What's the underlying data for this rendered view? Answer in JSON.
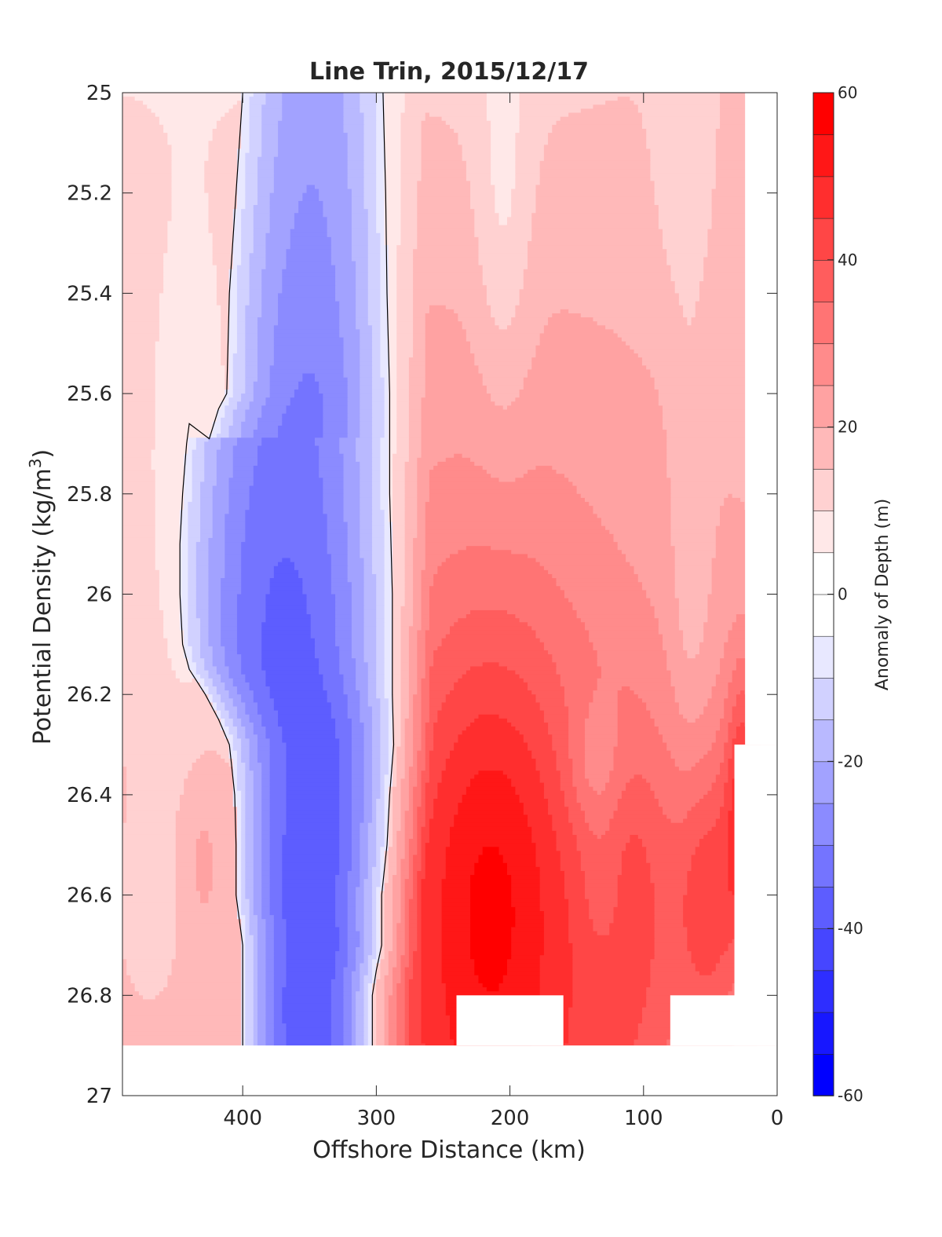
{
  "chart_data": {
    "type": "heatmap",
    "subtype": "filled-contour",
    "title": "Line Trin, 2015/12/17",
    "xlabel": "Offshore Distance (km)",
    "ylabel_main": "Potential Density (kg/m",
    "ylabel_sup": "3",
    "ylabel_close": ")",
    "colorbar_label": "Anomaly of Depth (m)",
    "xlim": [
      490,
      0
    ],
    "x_reversed": true,
    "ylim": [
      25,
      27
    ],
    "y_reversed": true,
    "x_ticks": [
      400,
      300,
      200,
      100,
      0
    ],
    "x_tick_labels": [
      "400",
      "300",
      "200",
      "100",
      "0"
    ],
    "y_ticks": [
      25,
      25.2,
      25.4,
      25.6,
      25.8,
      26,
      26.2,
      26.4,
      26.6,
      26.8,
      27
    ],
    "y_tick_labels": [
      "25",
      "25.2",
      "25.4",
      "25.6",
      "25.8",
      "26",
      "26.2",
      "26.4",
      "26.6",
      "26.8",
      "27"
    ],
    "colorbar_range": [
      -60,
      60
    ],
    "colorbar_step": 5,
    "colorbar_ticks": [
      60,
      40,
      20,
      0,
      -20,
      -40,
      -60
    ],
    "colorbar_tick_labels": [
      "60",
      "40",
      "20",
      "0",
      "-20",
      "-40",
      "-60"
    ],
    "colors": {
      "positive": "#ff0000",
      "negative": "#0000ff",
      "zero": "#ffffff",
      "contour": "#000000"
    },
    "x": [
      485,
      470,
      455,
      440,
      425,
      410,
      400,
      390,
      375,
      360,
      345,
      330,
      315,
      300,
      290,
      280,
      265,
      250,
      235,
      220,
      205,
      190,
      175,
      160,
      145,
      130,
      115,
      100,
      85,
      70,
      55,
      40,
      25
    ],
    "y": [
      25.0,
      25.1,
      25.2,
      25.3,
      25.4,
      25.5,
      25.6,
      25.7,
      25.8,
      25.9,
      26.0,
      26.1,
      26.2,
      26.3,
      26.4,
      26.5,
      26.6,
      26.7,
      26.8,
      26.9
    ],
    "zero_contour_west": {
      "x": [
        400,
        405,
        410,
        412,
        418,
        425,
        440,
        442,
        445,
        447,
        447,
        445,
        440,
        428,
        418,
        410,
        406,
        405,
        405,
        400,
        400
      ],
      "y": [
        25.0,
        25.2,
        25.4,
        25.6,
        25.63,
        25.69,
        25.66,
        25.7,
        25.8,
        25.9,
        26.0,
        26.1,
        26.15,
        26.2,
        26.25,
        26.3,
        26.4,
        26.5,
        26.6,
        26.7,
        26.9
      ]
    },
    "zero_contour_east": {
      "x": [
        295,
        293,
        292,
        290,
        290,
        288,
        288,
        287,
        290,
        292,
        296,
        296,
        300,
        303,
        303
      ],
      "y": [
        25.0,
        25.2,
        25.4,
        25.6,
        25.8,
        26.0,
        26.2,
        26.3,
        26.4,
        26.5,
        26.6,
        26.7,
        26.75,
        26.8,
        26.9
      ]
    },
    "data_mask": [
      {
        "x_from": 490,
        "x_to": 0,
        "y_from": 26.9,
        "y_to": 27.0
      },
      {
        "x_from": 32,
        "x_to": 0,
        "y_from": 26.3,
        "y_to": 26.9
      },
      {
        "x_from": 24,
        "x_to": 0,
        "y_from": 25.0,
        "y_to": 26.3
      },
      {
        "x_from": 240,
        "x_to": 160,
        "y_from": 26.8,
        "y_to": 26.9
      },
      {
        "x_from": 80,
        "x_to": 0,
        "y_from": 26.8,
        "y_to": 26.9
      }
    ]
  }
}
